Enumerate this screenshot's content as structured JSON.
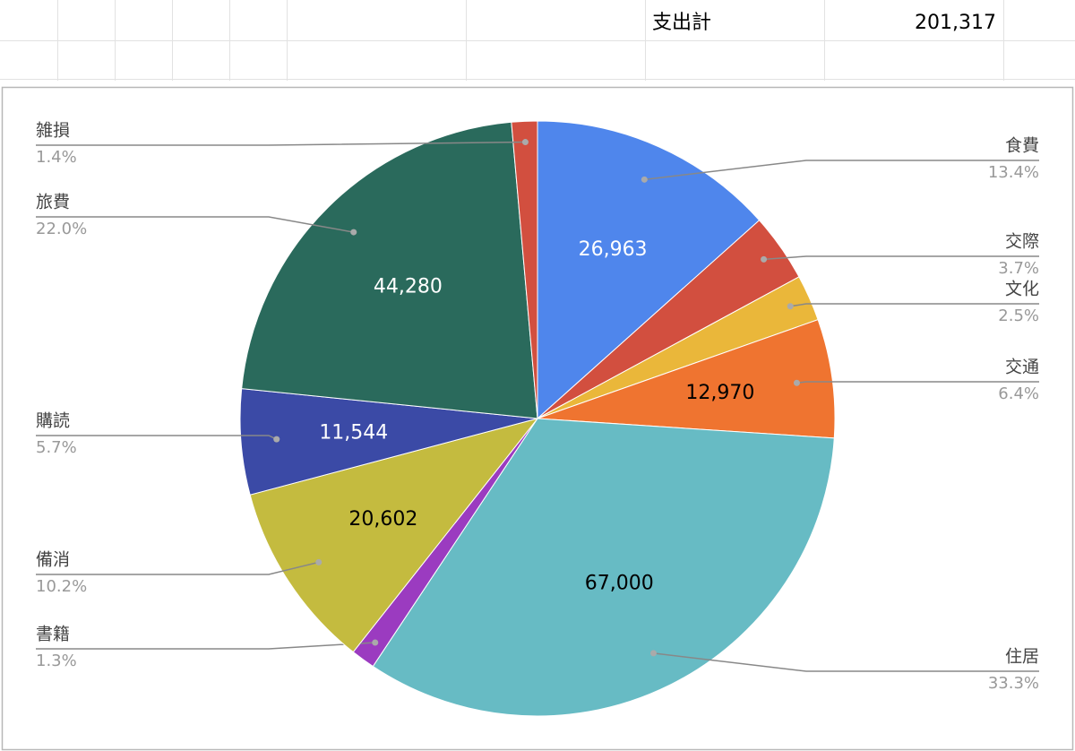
{
  "sheet": {
    "label": "支出計",
    "value": "201,317"
  },
  "chart_data": {
    "type": "pie",
    "categories": [
      "食費",
      "交際",
      "文化",
      "交通",
      "住居",
      "書籍",
      "備消",
      "購読",
      "旅費",
      "雑損"
    ],
    "values": [
      26963,
      7460,
      5050,
      12970,
      67000,
      2630,
      20602,
      11544,
      44280,
      2818
    ],
    "value_labels": [
      "26,963",
      null,
      null,
      "12,970",
      "67,000",
      null,
      "20,602",
      "11,544",
      "44,280",
      null
    ],
    "percent_labels": [
      "13.4%",
      "3.7%",
      "2.5%",
      "6.4%",
      "33.3%",
      "1.3%",
      "10.2%",
      "5.7%",
      "22.0%",
      "1.4%"
    ],
    "colors": [
      "#4f86ec",
      "#d24f3f",
      "#eab73a",
      "#ef7430",
      "#67bbc4",
      "#9b3bc0",
      "#c4bb3f",
      "#3b4aa6",
      "#2a6a5c",
      "#d24f3f"
    ]
  }
}
